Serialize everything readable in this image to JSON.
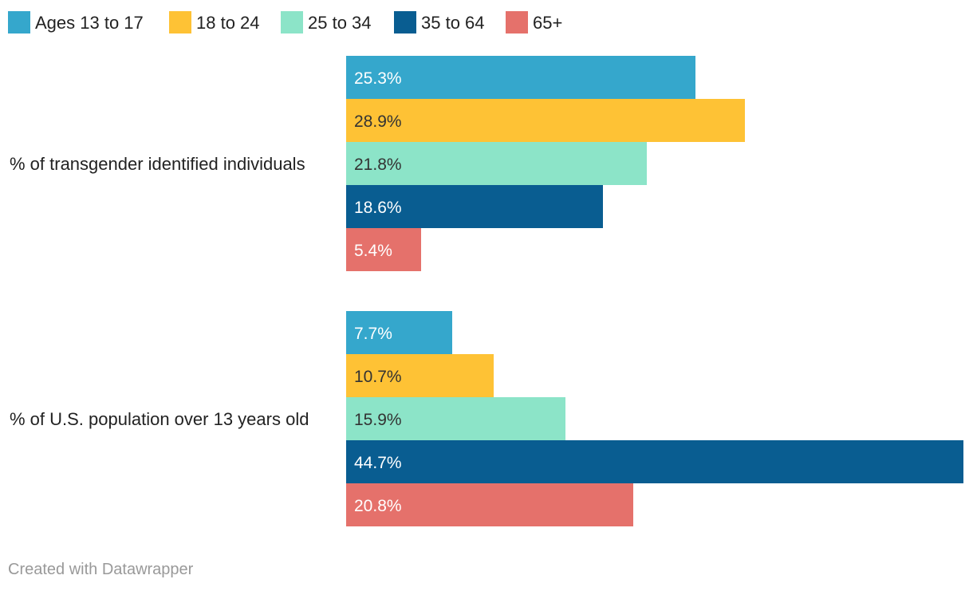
{
  "chart_data": {
    "type": "bar",
    "orientation": "horizontal",
    "grouped": true,
    "title": "",
    "xlabel": "",
    "ylabel": "",
    "xlim": [
      0,
      44.7
    ],
    "grid": false,
    "legend_position": "top-left",
    "value_suffix": "%",
    "categories": [
      "% of transgender identified individuals",
      "% of U.S. population over 13 years old"
    ],
    "series": [
      {
        "name": "Ages 13 to 17",
        "color": "#35a7cc",
        "label_color": "#ffffff",
        "values": [
          25.3,
          7.7
        ]
      },
      {
        "name": "18 to 24",
        "color": "#fec235",
        "label_color": "#333333",
        "values": [
          28.9,
          10.7
        ]
      },
      {
        "name": "25 to 34",
        "color": "#8ce4c8",
        "label_color": "#333333",
        "values": [
          21.8,
          15.9
        ]
      },
      {
        "name": "35 to 64",
        "color": "#095d91",
        "label_color": "#ffffff",
        "values": [
          18.6,
          44.7
        ]
      },
      {
        "name": "65+",
        "color": "#e5716b",
        "label_color": "#ffffff",
        "values": [
          5.4,
          20.8
        ]
      }
    ]
  },
  "footer": {
    "credit": "Created with Datawrapper"
  }
}
